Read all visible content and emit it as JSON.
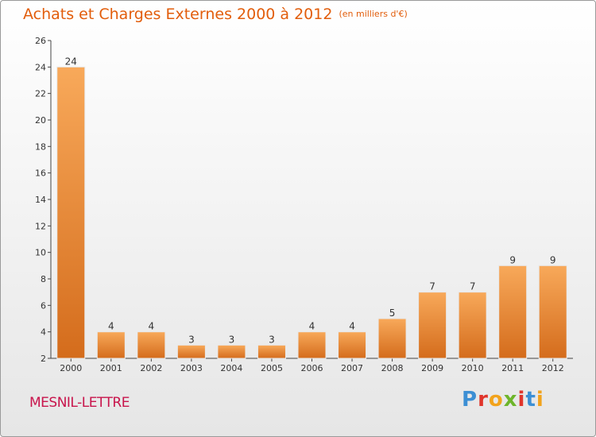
{
  "header": {
    "title": "Achats et Charges Externes 2000 à 2012",
    "subtitle": "(en milliers d'€)"
  },
  "footer": {
    "commune": "MESNIL-LETTRE",
    "brand": "Proxiti"
  },
  "colors": {
    "title": "#e25d0b",
    "commune": "#c8154c",
    "bar_light": "#f8a95a",
    "bar_dark": "#d46c1c",
    "brand_letters": [
      "#3c8fd4",
      "#e0352b",
      "#f2a31c",
      "#6db52b",
      "#e0352b",
      "#3c8fd4",
      "#f2a31c"
    ]
  },
  "chart_data": {
    "type": "bar",
    "categories": [
      "2000",
      "2001",
      "2002",
      "2003",
      "2004",
      "2005",
      "2006",
      "2007",
      "2008",
      "2009",
      "2010",
      "2011",
      "2012"
    ],
    "values": [
      24,
      4,
      4,
      3,
      3,
      3,
      4,
      4,
      5,
      7,
      7,
      9,
      9
    ],
    "title": "Achats et Charges Externes 2000 à 2012",
    "xlabel": "",
    "ylabel": "",
    "ylim": [
      2,
      26
    ],
    "yticks": [
      2,
      4,
      6,
      8,
      10,
      12,
      14,
      16,
      18,
      20,
      22,
      24,
      26
    ],
    "grid": false,
    "legend": "none"
  }
}
